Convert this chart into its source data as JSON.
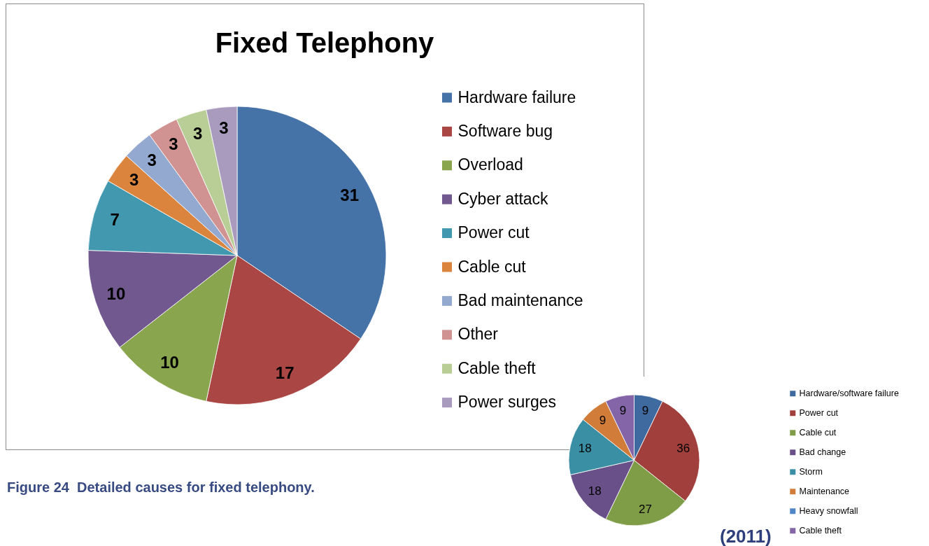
{
  "chart_data": [
    {
      "type": "pie",
      "title": "Fixed Telephony",
      "categories": [
        "Hardware failure",
        "Software bug",
        "Overload",
        "Cyber attack",
        "Power cut",
        "Cable cut",
        "Bad maintenance",
        "Other",
        "Cable theft",
        "Power surges"
      ],
      "values": [
        31,
        17,
        10,
        10,
        7,
        3,
        3,
        3,
        3,
        3
      ],
      "colors": [
        "#4572a7",
        "#aa4643",
        "#89a54e",
        "#71588f",
        "#4198af",
        "#db843d",
        "#93a9cf",
        "#d19392",
        "#b9cd96",
        "#a99bbd"
      ],
      "data_labels": true,
      "legend": "right",
      "annotations": [
        "Figure 24  Detailed causes for fixed telephony."
      ]
    },
    {
      "type": "pie",
      "categories": [
        "Hardware/software failure",
        "Power cut",
        "Cable cut",
        "Bad change",
        "Storm",
        "Maintenance",
        "Heavy snowfall",
        "Cable theft"
      ],
      "values": [
        9,
        36,
        27,
        18,
        18,
        9,
        null,
        9
      ],
      "colors": [
        "#3f6a9f",
        "#a03f3c",
        "#7f9c47",
        "#6a5088",
        "#3b8fa4",
        "#d27c3a",
        "#4f86c6",
        "#8466a8"
      ],
      "data_labels": true,
      "legend": "right",
      "annotations": [
        "(2011)"
      ]
    }
  ]
}
